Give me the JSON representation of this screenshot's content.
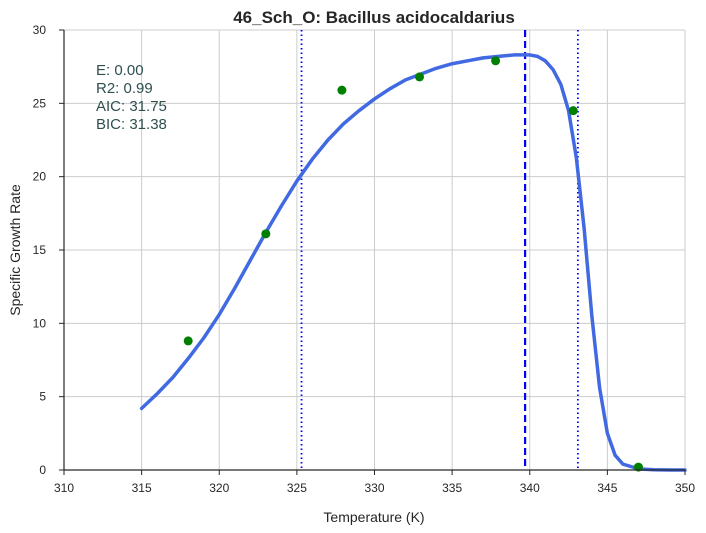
{
  "chart_data": {
    "type": "scatter",
    "title": "46_Sch_O: Bacillus acidocaldarius",
    "xlabel": "Temperature (K)",
    "ylabel": "Specific Growth Rate",
    "xlim": [
      310,
      350
    ],
    "ylim": [
      0,
      30
    ],
    "xticks": [
      310,
      315,
      320,
      325,
      330,
      335,
      340,
      345,
      350
    ],
    "yticks": [
      0,
      5,
      10,
      15,
      20,
      25,
      30
    ],
    "xtick_labels": [
      "310",
      "315",
      "320",
      "325",
      "330",
      "335",
      "340",
      "345",
      "350"
    ],
    "ytick_labels": [
      "0",
      "5",
      "10",
      "15",
      "20",
      "25",
      "30"
    ],
    "grid": true,
    "stats": [
      "E:  0.00",
      "R2:  0.99",
      "AIC: 31.75",
      "BIC: 31.38"
    ],
    "points": {
      "color": "#008000",
      "x": [
        318,
        323,
        327.9,
        332.9,
        337.8,
        342.8,
        347
      ],
      "y": [
        8.8,
        16.1,
        25.9,
        26.8,
        27.9,
        24.5,
        0.2
      ]
    },
    "fit_curve": {
      "color": "#4169e1",
      "x": [
        315,
        316,
        317,
        318,
        319,
        320,
        321,
        322,
        323,
        324,
        325,
        326,
        327,
        328,
        329,
        330,
        331,
        332,
        333,
        334,
        335,
        336,
        337,
        338,
        339,
        340,
        340.5,
        341,
        341.5,
        342,
        342.5,
        343,
        343.5,
        344,
        344.5,
        345,
        345.5,
        346,
        347,
        348,
        349,
        350
      ],
      "y": [
        4.2,
        5.2,
        6.3,
        7.6,
        9.0,
        10.6,
        12.4,
        14.3,
        16.2,
        18.0,
        19.7,
        21.2,
        22.5,
        23.6,
        24.5,
        25.3,
        26.0,
        26.6,
        27.0,
        27.4,
        27.7,
        27.9,
        28.1,
        28.2,
        28.3,
        28.3,
        28.2,
        27.9,
        27.3,
        26.3,
        24.5,
        21.3,
        16.5,
        10.5,
        5.6,
        2.5,
        1.0,
        0.4,
        0.08,
        0.02,
        0.0,
        0.0
      ]
    },
    "vlines": [
      {
        "x": 325.3,
        "style": "dotted",
        "color": "#0000ff"
      },
      {
        "x": 339.7,
        "style": "dashed",
        "color": "#0000ff"
      },
      {
        "x": 343.1,
        "style": "dotted",
        "color": "#0000ff"
      }
    ],
    "colors": {
      "grid": "#cccccc",
      "axis": "#262626",
      "stat_text": "#2f4f4f"
    }
  }
}
